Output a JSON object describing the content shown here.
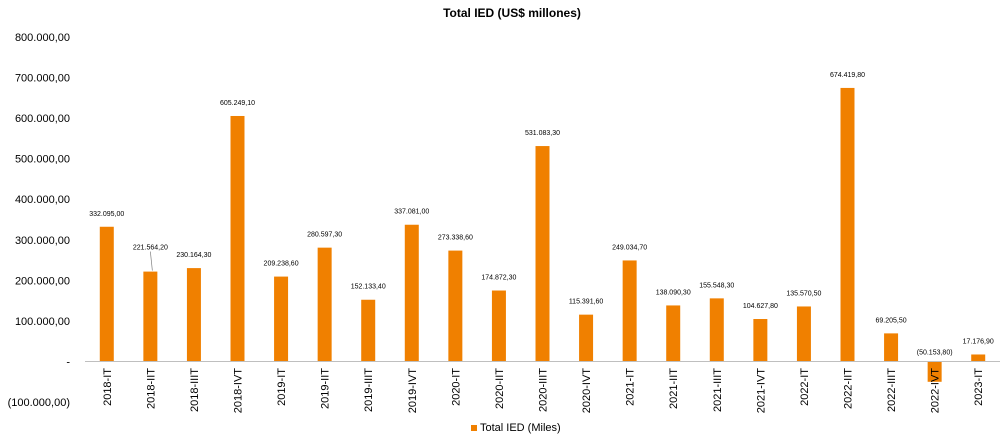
{
  "chart_data": {
    "type": "bar",
    "title": "Total IED (US$ millones)",
    "legend": "Total IED (Miles)",
    "legend_position": "bottom",
    "color": "#F08000",
    "grid": false,
    "ylim": [
      -100000,
      800000
    ],
    "yticks": [
      -100000,
      0,
      100000,
      200000,
      300000,
      400000,
      500000,
      600000,
      700000,
      800000
    ],
    "ytick_labels": [
      "(100.000,00)",
      "-",
      "100.000,00",
      "200.000,00",
      "300.000,00",
      "400.000,00",
      "500.000,00",
      "600.000,00",
      "700.000,00",
      "800.000,00"
    ],
    "categories": [
      "2018-IT",
      "2018-IIT",
      "2018-IIIT",
      "2018-IVT",
      "2019-IT",
      "2019-IIT",
      "2019-IIIT",
      "2019-IVT",
      "2020-IT",
      "2020-IIT",
      "2020-IIIT",
      "2020-IVT",
      "2021-IT",
      "2021-IIT",
      "2021-IIIT",
      "2021-IVT",
      "2022-IT",
      "2022-IIT",
      "2022-IIIT",
      "2022-IVT",
      "2023-IT"
    ],
    "values": [
      332095.0,
      221564.2,
      230164.3,
      605249.1,
      209238.6,
      280597.3,
      152133.4,
      337081.0,
      273338.6,
      174872.3,
      531083.3,
      115391.6,
      249034.7,
      138090.3,
      155548.3,
      104627.8,
      135570.5,
      674419.8,
      69205.5,
      -50153.8,
      17176.9
    ],
    "data_labels": [
      "332.095,00",
      "221.564,20",
      "230.164,30",
      "605.249,10",
      "209.238,60",
      "280.597,30",
      "152.133,40",
      "337.081,00",
      "273.338,60",
      "174.872,30",
      "531.083,30",
      "115.391,60",
      "249.034,70",
      "138.090,30",
      "155.548,30",
      "104.627,80",
      "135.570,50",
      "674.419,80",
      "69.205,50",
      "(50.153,80)",
      "17.176,90"
    ]
  }
}
